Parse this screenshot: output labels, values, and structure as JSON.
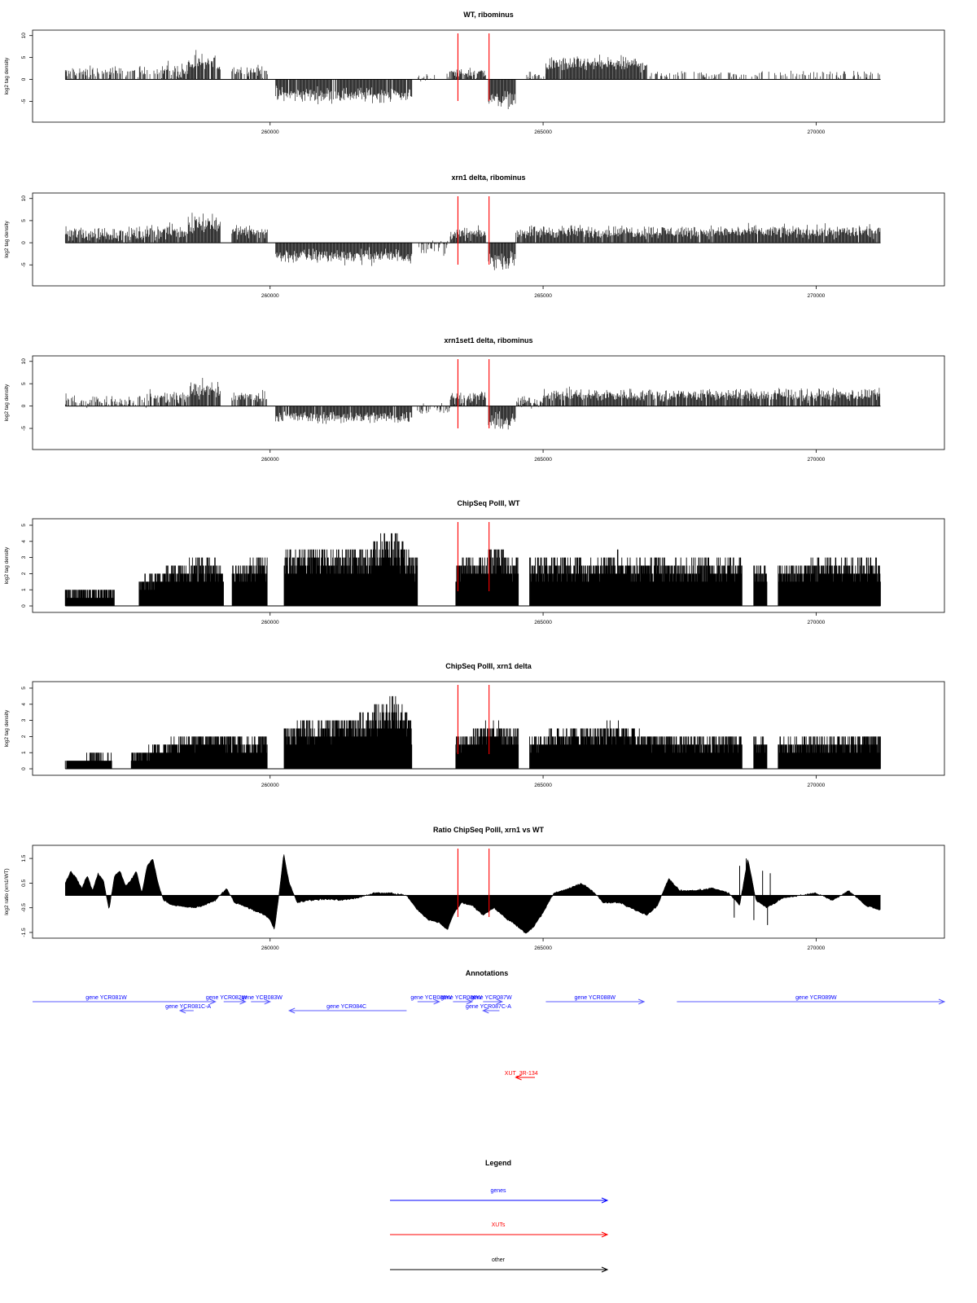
{
  "colors": {
    "gene": "#0000ff",
    "gene_arrow": "#5b5bff",
    "xut": "#ff0000",
    "other": "#000000",
    "marker": "#ff0000",
    "data": "#000000"
  },
  "shared_x": {
    "xlim": [
      255650,
      272350
    ],
    "ticks": [
      260000,
      265000,
      270000
    ],
    "tick_labels": [
      "260000",
      "265000",
      "270000"
    ],
    "data_start": 256250,
    "data_end": 271180
  },
  "markers_x": [
    263440,
    264010
  ],
  "chart_data": [
    {
      "type": "bar",
      "title": "WT, ribominus",
      "ylabel": "log2 tag density",
      "ylim": [
        -9,
        10.5
      ],
      "yticks": [
        -5,
        0,
        5,
        10
      ],
      "ytick_labels": [
        "-5",
        "0",
        "5",
        "10"
      ],
      "profile": [
        {
          "start": 256250,
          "end": 257800,
          "mean": 1.5,
          "var": 1.6,
          "min": -2,
          "max": 4,
          "gap": 0.4
        },
        {
          "start": 257800,
          "end": 258500,
          "mean": 2.0,
          "var": 1.8,
          "min": -2,
          "max": 5,
          "gap": 0.3
        },
        {
          "start": 258500,
          "end": 259100,
          "mean": 3.5,
          "var": 2.5,
          "min": -1,
          "max": 8.5,
          "gap": 0.1
        },
        {
          "start": 259300,
          "end": 259950,
          "mean": 2.0,
          "var": 1.5,
          "min": -1,
          "max": 5,
          "gap": 0.2
        },
        {
          "start": 260100,
          "end": 262600,
          "mean": -3.5,
          "var": 1.8,
          "min": -7,
          "max": 0,
          "gap": 0.05
        },
        {
          "start": 262700,
          "end": 263300,
          "mean": 0.5,
          "var": 1.5,
          "min": -2,
          "max": 2,
          "gap": 0.6
        },
        {
          "start": 263300,
          "end": 263950,
          "mean": 1.5,
          "var": 1.2,
          "min": 0,
          "max": 3.5,
          "gap": 0.1
        },
        {
          "start": 264000,
          "end": 264500,
          "mean": -4.5,
          "var": 2.0,
          "min": -8,
          "max": 0,
          "gap": 0.0
        },
        {
          "start": 264700,
          "end": 265050,
          "mean": 0.8,
          "var": 1.2,
          "min": -2,
          "max": 3,
          "gap": 0.5
        },
        {
          "start": 265050,
          "end": 266900,
          "mean": 3.5,
          "var": 1.8,
          "min": 0,
          "max": 7.5,
          "gap": 0.02
        },
        {
          "start": 266900,
          "end": 271180,
          "mean": 1.2,
          "var": 0.9,
          "min": 0,
          "max": 5.5,
          "gap": 0.7
        }
      ]
    },
    {
      "type": "bar",
      "title": "xrn1 delta, ribominus",
      "ylabel": "log2 tag density",
      "ylim": [
        -9,
        10.5
      ],
      "yticks": [
        -5,
        0,
        5,
        10
      ],
      "ytick_labels": [
        "-5",
        "0",
        "5",
        "10"
      ],
      "profile": [
        {
          "start": 256250,
          "end": 257800,
          "mean": 2.0,
          "var": 1.8,
          "min": -3,
          "max": 5,
          "gap": 0.05
        },
        {
          "start": 257800,
          "end": 258500,
          "mean": 2.5,
          "var": 1.8,
          "min": -2,
          "max": 5.5,
          "gap": 0.05
        },
        {
          "start": 258500,
          "end": 259100,
          "mean": 4.5,
          "var": 2.5,
          "min": -1,
          "max": 10,
          "gap": 0.0
        },
        {
          "start": 259300,
          "end": 259950,
          "mean": 2.5,
          "var": 1.5,
          "min": -1,
          "max": 6,
          "gap": 0.05
        },
        {
          "start": 260100,
          "end": 262600,
          "mean": -3.0,
          "var": 1.8,
          "min": -7,
          "max": 0,
          "gap": 0.0
        },
        {
          "start": 262700,
          "end": 263300,
          "mean": -1.0,
          "var": 2.0,
          "min": -6,
          "max": 1,
          "gap": 0.4
        },
        {
          "start": 263300,
          "end": 263950,
          "mean": 2.0,
          "var": 1.5,
          "min": -1,
          "max": 5,
          "gap": 0.02
        },
        {
          "start": 264000,
          "end": 264500,
          "mean": -4.0,
          "var": 2.0,
          "min": -8,
          "max": 0,
          "gap": 0.0
        },
        {
          "start": 264500,
          "end": 271180,
          "mean": 2.5,
          "var": 1.5,
          "min": -3,
          "max": 7.5,
          "gap": 0.03
        }
      ]
    },
    {
      "type": "bar",
      "title": "xrn1set1 delta, ribominus",
      "ylabel": "log2 tag density",
      "ylim": [
        -9,
        10.5
      ],
      "yticks": [
        -5,
        0,
        5,
        10
      ],
      "ytick_labels": [
        "-5",
        "0",
        "5",
        "10"
      ],
      "profile": [
        {
          "start": 256250,
          "end": 257800,
          "mean": 1.2,
          "var": 1.5,
          "min": -2,
          "max": 4,
          "gap": 0.4
        },
        {
          "start": 257800,
          "end": 258500,
          "mean": 2.0,
          "var": 1.8,
          "min": -3,
          "max": 5,
          "gap": 0.2
        },
        {
          "start": 258500,
          "end": 259100,
          "mean": 3.5,
          "var": 2.5,
          "min": -2,
          "max": 9.5,
          "gap": 0.05
        },
        {
          "start": 259300,
          "end": 259950,
          "mean": 2.0,
          "var": 1.5,
          "min": -1,
          "max": 5,
          "gap": 0.1
        },
        {
          "start": 260100,
          "end": 262600,
          "mean": -2.5,
          "var": 1.5,
          "min": -6,
          "max": 0,
          "gap": 0.05
        },
        {
          "start": 262700,
          "end": 263300,
          "mean": -0.5,
          "var": 1.5,
          "min": -3,
          "max": 2,
          "gap": 0.5
        },
        {
          "start": 263300,
          "end": 263950,
          "mean": 2.0,
          "var": 1.5,
          "min": -1,
          "max": 5,
          "gap": 0.05
        },
        {
          "start": 264000,
          "end": 264500,
          "mean": -3.5,
          "var": 2.0,
          "min": -7.5,
          "max": 0,
          "gap": 0.0
        },
        {
          "start": 264500,
          "end": 265000,
          "mean": 1.0,
          "var": 1.5,
          "min": -1,
          "max": 3,
          "gap": 0.3
        },
        {
          "start": 265000,
          "end": 271180,
          "mean": 2.5,
          "var": 1.5,
          "min": -1,
          "max": 7.5,
          "gap": 0.05
        }
      ]
    },
    {
      "type": "bar",
      "title": "ChipSeq PolII, WT",
      "ylabel": "log2 tag density",
      "ylim": [
        -0.2,
        5.2
      ],
      "yticks": [
        0,
        1,
        2,
        3,
        4,
        5
      ],
      "ytick_labels": [
        "0",
        "1",
        "2",
        "3",
        "4",
        "5"
      ],
      "envelope": [
        [
          256250,
          1.0
        ],
        [
          257000,
          1.0
        ],
        [
          257600,
          1.6
        ],
        [
          258000,
          2.2
        ],
        [
          258500,
          2.8
        ],
        [
          259000,
          3.0
        ],
        [
          259500,
          2.6
        ],
        [
          259900,
          3.1
        ],
        [
          260300,
          3.3
        ],
        [
          260800,
          3.5
        ],
        [
          261300,
          3.4
        ],
        [
          261600,
          3.3
        ],
        [
          261900,
          4.0
        ],
        [
          262100,
          4.5
        ],
        [
          262300,
          4.5
        ],
        [
          262600,
          3.0
        ],
        [
          263300,
          2.5
        ],
        [
          263700,
          3.0
        ],
        [
          263950,
          3.2
        ],
        [
          264150,
          3.6
        ],
        [
          264500,
          2.8
        ],
        [
          264800,
          2.8
        ],
        [
          265300,
          3.0
        ],
        [
          265800,
          2.8
        ],
        [
          266200,
          3.2
        ],
        [
          266400,
          3.3
        ],
        [
          266800,
          2.8
        ],
        [
          267500,
          2.8
        ],
        [
          268000,
          2.9
        ],
        [
          268500,
          2.9
        ],
        [
          269000,
          2.6
        ],
        [
          269500,
          2.6
        ],
        [
          270200,
          2.9
        ],
        [
          271180,
          3.0
        ]
      ],
      "gaps": [
        [
          257150,
          257600
        ],
        [
          259150,
          259300
        ],
        [
          259950,
          260250
        ],
        [
          262700,
          263400
        ],
        [
          264550,
          264750
        ],
        [
          268650,
          268850
        ],
        [
          269100,
          269300
        ]
      ]
    },
    {
      "type": "bar",
      "title": "ChipSeq PolII, xrn1 delta",
      "ylabel": "log2 tag density",
      "ylim": [
        -0.2,
        5.2
      ],
      "yticks": [
        0,
        1,
        2,
        3,
        4,
        5
      ],
      "ytick_labels": [
        "0",
        "1",
        "2",
        "3",
        "4",
        "5"
      ],
      "envelope": [
        [
          256250,
          0.4
        ],
        [
          256800,
          0.9
        ],
        [
          257200,
          0.8
        ],
        [
          257600,
          1.2
        ],
        [
          258000,
          1.5
        ],
        [
          258500,
          2.2
        ],
        [
          259000,
          2.2
        ],
        [
          259500,
          1.8
        ],
        [
          259900,
          2.0
        ],
        [
          260300,
          2.6
        ],
        [
          260800,
          3.0
        ],
        [
          261300,
          3.2
        ],
        [
          261600,
          3.2
        ],
        [
          261900,
          3.8
        ],
        [
          262100,
          4.3
        ],
        [
          262300,
          4.3
        ],
        [
          262600,
          3.0
        ],
        [
          263400,
          1.8
        ],
        [
          263700,
          2.5
        ],
        [
          263950,
          2.8
        ],
        [
          264150,
          3.0
        ],
        [
          264500,
          2.4
        ],
        [
          264800,
          2.0
        ],
        [
          265300,
          2.5
        ],
        [
          265800,
          2.6
        ],
        [
          266200,
          2.8
        ],
        [
          266400,
          2.8
        ],
        [
          266800,
          2.2
        ],
        [
          267500,
          2.0
        ],
        [
          268000,
          2.0
        ],
        [
          268500,
          2.0
        ],
        [
          269000,
          1.8
        ],
        [
          269500,
          1.8
        ],
        [
          270200,
          1.9
        ],
        [
          271180,
          2.2
        ]
      ],
      "gaps": [
        [
          257100,
          257450
        ],
        [
          259950,
          260250
        ],
        [
          262600,
          263400
        ],
        [
          264550,
          264750
        ],
        [
          268650,
          268850
        ],
        [
          269100,
          269300
        ]
      ]
    },
    {
      "type": "area",
      "title": "Ratio ChipSeq PolII, xrn1 vs WT",
      "ylabel": "log2 ratio (xrn1/WT)",
      "ylim": [
        -1.6,
        1.9
      ],
      "baseline": 0,
      "yticks": [
        -1.5,
        -0.5,
        0.5,
        1.5
      ],
      "ytick_labels": [
        "-1.5",
        "-0.5",
        "0.5",
        "1.5"
      ],
      "series": [
        [
          256250,
          0.5
        ],
        [
          256350,
          1.0
        ],
        [
          256450,
          0.7
        ],
        [
          256550,
          0.3
        ],
        [
          256650,
          0.8
        ],
        [
          256750,
          0.2
        ],
        [
          256850,
          0.9
        ],
        [
          256950,
          0.6
        ],
        [
          257050,
          -0.6
        ],
        [
          257150,
          0.8
        ],
        [
          257250,
          1.0
        ],
        [
          257350,
          0.4
        ],
        [
          257450,
          0.6
        ],
        [
          257550,
          1.0
        ],
        [
          257650,
          0.1
        ],
        [
          257750,
          1.2
        ],
        [
          257850,
          1.5
        ],
        [
          257950,
          0.5
        ],
        [
          258050,
          -0.2
        ],
        [
          258200,
          -0.4
        ],
        [
          258400,
          -0.45
        ],
        [
          258600,
          -0.5
        ],
        [
          258800,
          -0.4
        ],
        [
          259000,
          -0.2
        ],
        [
          259200,
          0.3
        ],
        [
          259350,
          -0.3
        ],
        [
          259500,
          -0.4
        ],
        [
          259700,
          -0.6
        ],
        [
          259900,
          -0.8
        ],
        [
          260000,
          -1.0
        ],
        [
          260080,
          -1.4
        ],
        [
          260150,
          -0.2
        ],
        [
          260250,
          1.7
        ],
        [
          260350,
          0.5
        ],
        [
          260500,
          -0.3
        ],
        [
          260700,
          -0.2
        ],
        [
          261000,
          -0.15
        ],
        [
          261300,
          -0.2
        ],
        [
          261600,
          -0.1
        ],
        [
          261900,
          0.1
        ],
        [
          262200,
          0.1
        ],
        [
          262500,
          0.0
        ],
        [
          262700,
          -0.6
        ],
        [
          262900,
          -1.0
        ],
        [
          263100,
          -1.1
        ],
        [
          263250,
          -1.4
        ],
        [
          263350,
          -0.8
        ],
        [
          263500,
          -0.3
        ],
        [
          263700,
          -0.4
        ],
        [
          263900,
          -0.8
        ],
        [
          264100,
          -0.5
        ],
        [
          264300,
          -0.9
        ],
        [
          264500,
          -1.2
        ],
        [
          264700,
          -1.55
        ],
        [
          264850,
          -1.2
        ],
        [
          265000,
          -0.7
        ],
        [
          265200,
          0.1
        ],
        [
          265500,
          0.3
        ],
        [
          265700,
          0.5
        ],
        [
          265900,
          0.2
        ],
        [
          266100,
          -0.3
        ],
        [
          266400,
          -0.3
        ],
        [
          266700,
          -0.6
        ],
        [
          266900,
          -0.8
        ],
        [
          267100,
          -0.4
        ],
        [
          267300,
          0.7
        ],
        [
          267500,
          0.2
        ],
        [
          267800,
          0.2
        ],
        [
          268100,
          0.3
        ],
        [
          268400,
          0.1
        ],
        [
          268600,
          -0.4
        ],
        [
          268750,
          1.5
        ],
        [
          268900,
          -0.2
        ],
        [
          269100,
          -0.5
        ],
        [
          269400,
          -0.1
        ],
        [
          269700,
          0.0
        ],
        [
          270000,
          0.1
        ],
        [
          270300,
          -0.2
        ],
        [
          270600,
          0.2
        ],
        [
          270900,
          -0.4
        ],
        [
          271180,
          -0.6
        ]
      ],
      "spikes": [
        [
          268500,
          -0.9
        ],
        [
          268600,
          1.2
        ],
        [
          268720,
          1.5
        ],
        [
          268860,
          -1.0
        ],
        [
          269020,
          1.0
        ],
        [
          269110,
          -1.2
        ],
        [
          269160,
          0.9
        ]
      ]
    }
  ],
  "annotations": {
    "title": "Annotations",
    "genes": [
      {
        "label": "gene YCR081W",
        "start": 255650,
        "end": 259000,
        "strand": "+",
        "row": 0,
        "label_x": 257000
      },
      {
        "label": "gene YCR081C-A",
        "start": 258350,
        "end": 258600,
        "strand": "-",
        "row": 1,
        "label_x": 258500
      },
      {
        "label": "gene YCR082W",
        "start": 259150,
        "end": 259550,
        "strand": "+",
        "row": 0,
        "label_x": 259200
      },
      {
        "label": "gene YCR083W",
        "start": 259650,
        "end": 260000,
        "strand": "+",
        "row": 0,
        "label_x": 259850
      },
      {
        "label": "gene YCR084C",
        "start": 260350,
        "end": 262500,
        "strand": "-",
        "row": 1,
        "label_x": 261400
      },
      {
        "label": "gene YCR085W",
        "start": 262700,
        "end": 263100,
        "strand": "+",
        "row": 0,
        "label_x": 262950
      },
      {
        "label": "gene YCR086W",
        "start": 263350,
        "end": 263700,
        "strand": "+",
        "row": 0,
        "label_x": 263500
      },
      {
        "label": "gene YCR087W",
        "start": 263900,
        "end": 264250,
        "strand": "+",
        "row": 0,
        "label_x": 264050
      },
      {
        "label": "gene YCR087C-A",
        "start": 263900,
        "end": 264200,
        "strand": "-",
        "row": 1,
        "label_x": 264000
      },
      {
        "label": "gene YCR088W",
        "start": 265050,
        "end": 266850,
        "strand": "+",
        "row": 0,
        "label_x": 265950
      },
      {
        "label": "gene YCR089W",
        "start": 267450,
        "end": 272350,
        "strand": "+",
        "row": 0,
        "label_x": 270000
      }
    ],
    "xuts": [
      {
        "label": "XUT_3R-134",
        "start": 264500,
        "end": 264850,
        "strand": "-",
        "label_x": 264600
      }
    ]
  },
  "legend": {
    "title": "Legend",
    "items": [
      {
        "label": "genes",
        "color": "#0000ff",
        "kind": "gene"
      },
      {
        "label": "XUTs",
        "color": "#ff0000",
        "kind": "xut"
      },
      {
        "label": "other",
        "color": "#000000",
        "kind": "other"
      }
    ]
  }
}
